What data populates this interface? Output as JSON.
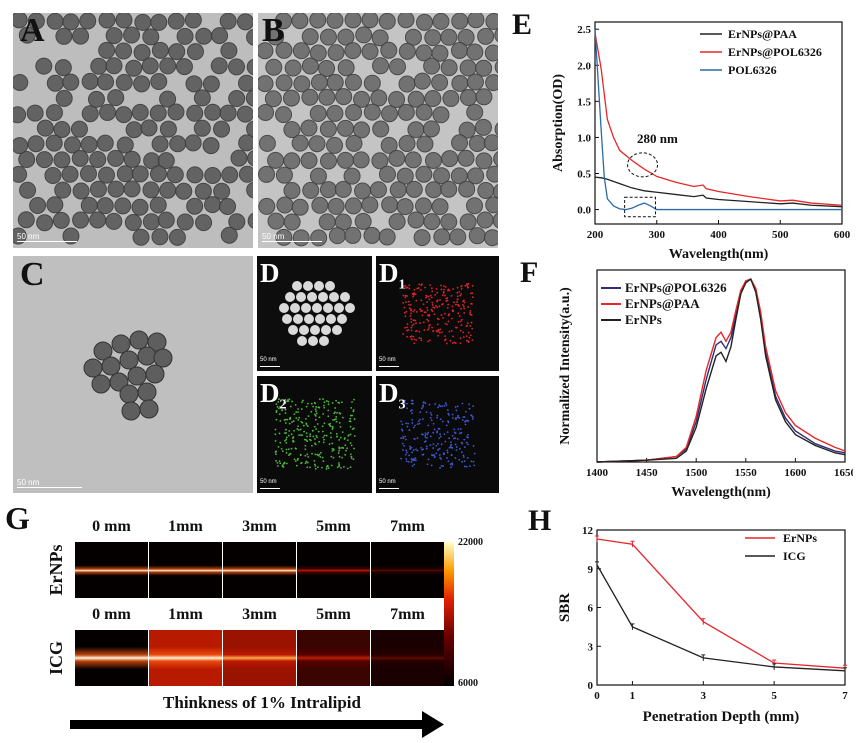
{
  "panel_letters": {
    "A": "A",
    "B": "B",
    "C": "C",
    "D": "D",
    "D1": "D",
    "D2": "D",
    "D3": "D",
    "E": "E",
    "F": "F",
    "G": "G",
    "H": "H",
    "sub1": "1",
    "sub2": "2",
    "sub3": "3"
  },
  "scalebars": {
    "a": "50 nm",
    "b": "50 nm",
    "c": "50 nm",
    "d": "50 nm",
    "d1": "50 nm",
    "d2": "50 nm",
    "d3": "50 nm"
  },
  "colors": {
    "black": "#222222",
    "red": "#e8262a",
    "blue": "#2b6aa8",
    "navy": "#2a2f7a",
    "bg_tem": "#b8b8b8",
    "particle": "#4a4a4a"
  },
  "panel_g": {
    "depth_labels_top": [
      "0 mm",
      "1mm",
      "3mm",
      "5mm",
      "7mm"
    ],
    "depth_labels_bottom": [
      "0 mm",
      "1mm",
      "3mm",
      "5mm",
      "7mm"
    ],
    "row_labels": [
      "ErNPs",
      "ICG"
    ],
    "colorbar_max": "22000",
    "colorbar_min": "6000",
    "arrow_caption": "Thinkness of 1% Intralipid"
  },
  "chart_data": [
    {
      "panel": "E",
      "type": "line",
      "xlabel": "Wavelength(nm)",
      "ylabel": "Absorption(OD)",
      "xlim": [
        200,
        600
      ],
      "ylim": [
        -0.2,
        2.6
      ],
      "xticks": [
        200,
        300,
        400,
        500,
        600
      ],
      "yticks": [
        0.0,
        0.5,
        1.0,
        1.5,
        2.0,
        2.5
      ],
      "xtick_labels": [
        "200",
        "300",
        "400",
        "500",
        "600"
      ],
      "ytick_labels": [
        "0.0",
        "0.5",
        "1.0",
        "1.5",
        "2.0",
        "2.5"
      ],
      "annotation": "280 nm",
      "legend": "top-right",
      "series": [
        {
          "name": "ErNPs@PAA",
          "color": "#222222",
          "x": [
            200,
            210,
            220,
            240,
            260,
            280,
            300,
            330,
            360,
            375,
            380,
            400,
            450,
            500,
            520,
            550,
            600
          ],
          "y": [
            0.45,
            0.44,
            0.42,
            0.36,
            0.3,
            0.26,
            0.24,
            0.21,
            0.18,
            0.2,
            0.16,
            0.14,
            0.11,
            0.08,
            0.09,
            0.06,
            0.04
          ]
        },
        {
          "name": "ErNPs@POL6326",
          "color": "#e8262a",
          "x": [
            200,
            205,
            210,
            215,
            220,
            230,
            240,
            260,
            280,
            300,
            330,
            360,
            375,
            380,
            400,
            450,
            500,
            520,
            550,
            600
          ],
          "y": [
            2.45,
            2.2,
            1.95,
            1.6,
            1.25,
            1.0,
            0.82,
            0.68,
            0.56,
            0.46,
            0.38,
            0.32,
            0.34,
            0.29,
            0.25,
            0.18,
            0.12,
            0.13,
            0.09,
            0.06
          ]
        },
        {
          "name": "POL6326",
          "color": "#2b6aa8",
          "x": [
            200,
            205,
            210,
            215,
            220,
            230,
            240,
            250,
            260,
            270,
            280,
            290,
            300,
            350,
            400,
            500,
            600
          ],
          "y": [
            2.5,
            1.8,
            1.1,
            0.45,
            0.15,
            0.05,
            0.01,
            0.0,
            0.02,
            0.06,
            0.09,
            0.05,
            0.0,
            0.0,
            0.0,
            0.0,
            0.0
          ]
        }
      ]
    },
    {
      "panel": "F",
      "type": "line",
      "xlabel": "Wavelength(nm)",
      "ylabel": "Normalized Intensity(a.u.)",
      "xlim": [
        1400,
        1650
      ],
      "ylim": [
        0,
        1.05
      ],
      "xticks": [
        1400,
        1450,
        1500,
        1550,
        1600,
        1650
      ],
      "xtick_labels": [
        "1400",
        "1450",
        "1500",
        "1550",
        "1600",
        "1650"
      ],
      "legend": "top-left",
      "series": [
        {
          "name": "ErNPs@POL6326",
          "color": "#2a2f7a",
          "x": [
            1400,
            1450,
            1480,
            1490,
            1500,
            1510,
            1520,
            1525,
            1530,
            1535,
            1540,
            1545,
            1550,
            1555,
            1560,
            1565,
            1570,
            1580,
            1590,
            1600,
            1620,
            1640,
            1650
          ],
          "y": [
            0.0,
            0.01,
            0.03,
            0.07,
            0.22,
            0.45,
            0.64,
            0.66,
            0.62,
            0.68,
            0.8,
            0.93,
            0.99,
            1.0,
            0.94,
            0.8,
            0.6,
            0.36,
            0.24,
            0.17,
            0.1,
            0.06,
            0.05
          ]
        },
        {
          "name": "ErNPs@PAA",
          "color": "#e8262a",
          "x": [
            1400,
            1450,
            1480,
            1490,
            1500,
            1510,
            1520,
            1525,
            1530,
            1535,
            1540,
            1545,
            1550,
            1555,
            1560,
            1565,
            1570,
            1580,
            1590,
            1600,
            1620,
            1640,
            1650
          ],
          "y": [
            0.0,
            0.01,
            0.03,
            0.08,
            0.25,
            0.5,
            0.68,
            0.71,
            0.66,
            0.71,
            0.83,
            0.94,
            0.99,
            1.0,
            0.95,
            0.82,
            0.63,
            0.39,
            0.27,
            0.2,
            0.13,
            0.08,
            0.06
          ]
        },
        {
          "name": "ErNPs",
          "color": "#222222",
          "x": [
            1400,
            1450,
            1480,
            1490,
            1500,
            1510,
            1520,
            1525,
            1530,
            1535,
            1540,
            1545,
            1550,
            1555,
            1560,
            1565,
            1570,
            1580,
            1590,
            1600,
            1620,
            1640,
            1650
          ],
          "y": [
            0.0,
            0.01,
            0.02,
            0.06,
            0.19,
            0.4,
            0.58,
            0.6,
            0.55,
            0.63,
            0.78,
            0.92,
            0.98,
            1.0,
            0.93,
            0.78,
            0.58,
            0.34,
            0.22,
            0.15,
            0.09,
            0.05,
            0.04
          ]
        }
      ]
    },
    {
      "panel": "H",
      "type": "line",
      "xlabel": "Penetration Depth (mm)",
      "ylabel": "SBR",
      "xlim": [
        0,
        7
      ],
      "ylim": [
        0,
        12
      ],
      "xticks": [
        0,
        1,
        3,
        5,
        7
      ],
      "yticks": [
        0,
        3,
        6,
        9,
        12
      ],
      "xtick_labels": [
        "0",
        "1",
        "3",
        "5",
        "7"
      ],
      "ytick_labels": [
        "0",
        "3",
        "6",
        "9",
        "12"
      ],
      "legend": "top-right",
      "series": [
        {
          "name": "ErNPs",
          "color": "#e8262a",
          "x": [
            0,
            1,
            3,
            5,
            7
          ],
          "y": [
            11.3,
            10.9,
            4.9,
            1.7,
            1.3
          ]
        },
        {
          "name": "ICG",
          "color": "#222222",
          "x": [
            0,
            1,
            3,
            5,
            7
          ],
          "y": [
            9.3,
            4.5,
            2.1,
            1.4,
            1.1
          ]
        }
      ]
    }
  ]
}
